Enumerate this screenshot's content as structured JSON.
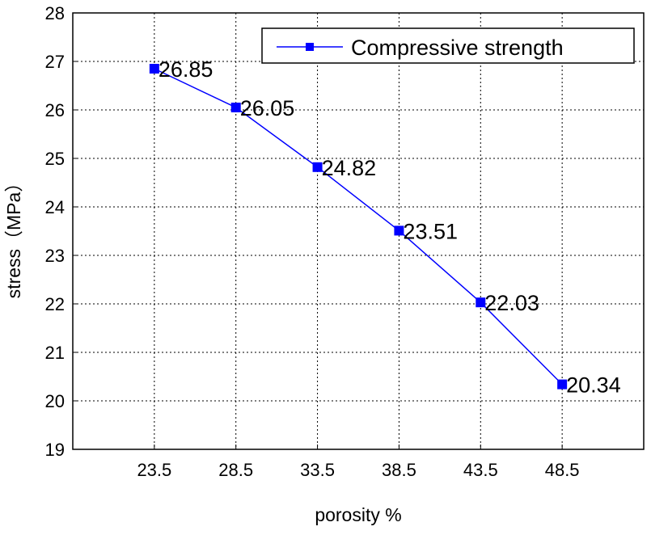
{
  "chart_data": {
    "type": "line",
    "title": "",
    "xlabel": "porosity %",
    "ylabel": "stress（MPa）",
    "x": [
      23.5,
      28.5,
      33.5,
      38.5,
      43.5,
      48.5
    ],
    "x_tick_labels": [
      "23.5",
      "28.5",
      "33.5",
      "38.5",
      "43.5",
      "48.5"
    ],
    "xlim": [
      18.5,
      53.5
    ],
    "ylim": [
      19,
      28
    ],
    "y_ticks": [
      19,
      20,
      21,
      22,
      23,
      24,
      25,
      26,
      27,
      28
    ],
    "y_tick_labels": [
      "19",
      "20",
      "21",
      "22",
      "23",
      "24",
      "25",
      "26",
      "27",
      "28"
    ],
    "grid": true,
    "legend_position": "top-right",
    "series": [
      {
        "name": "Compressive strength",
        "color": "#0000ff",
        "marker": "square",
        "values": [
          26.85,
          26.05,
          24.82,
          23.51,
          22.03,
          20.34
        ],
        "data_labels": [
          "26.85",
          "26.05",
          "24.82",
          "23.51",
          "22.03",
          "20.34"
        ]
      }
    ]
  }
}
